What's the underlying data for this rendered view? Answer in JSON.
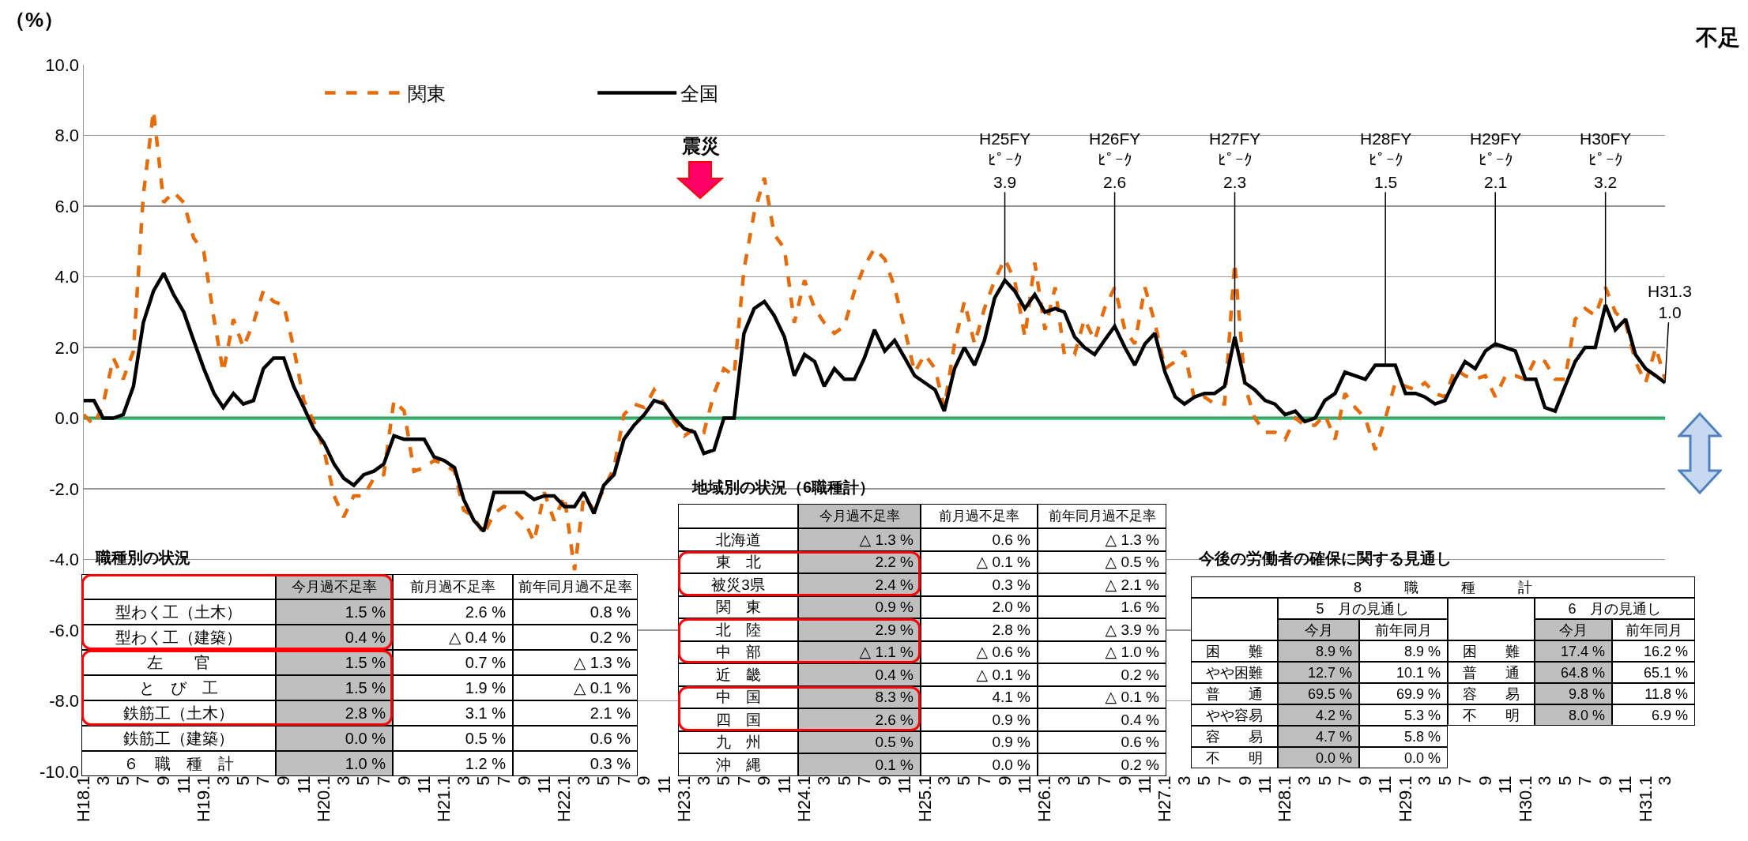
{
  "chart_data": {
    "type": "line",
    "ylabel": "（%）",
    "legend": "top left",
    "grid": "y",
    "x": [
      "2006-01",
      "2006-02",
      "2006-03",
      "2006-04",
      "2006-05",
      "2006-06",
      "2006-07",
      "2006-08",
      "2006-09",
      "2006-10",
      "2006-11",
      "2006-12",
      "2007-01",
      "2007-02",
      "2007-03",
      "2007-04",
      "2007-05",
      "2007-06",
      "2007-07",
      "2007-08",
      "2007-09",
      "2007-10",
      "2007-11",
      "2007-12",
      "2008-01",
      "2008-02",
      "2008-03",
      "2008-04",
      "2008-05",
      "2008-06",
      "2008-07",
      "2008-08",
      "2008-09",
      "2008-10",
      "2008-11",
      "2008-12",
      "2009-01",
      "2009-02",
      "2009-03",
      "2009-04",
      "2009-05",
      "2009-06",
      "2009-07",
      "2009-08",
      "2009-09",
      "2009-10",
      "2009-11",
      "2009-12",
      "2010-01",
      "2010-02",
      "2010-03",
      "2010-04",
      "2010-05",
      "2010-06",
      "2010-07",
      "2010-08",
      "2010-09",
      "2010-10",
      "2010-11",
      "2010-12",
      "2011-01",
      "2011-02",
      "2011-03",
      "2011-04",
      "2011-05",
      "2011-06",
      "2011-07",
      "2011-08",
      "2011-09",
      "2011-10",
      "2011-11",
      "2011-12",
      "2012-01",
      "2012-02",
      "2012-03",
      "2012-04",
      "2012-05",
      "2012-06",
      "2012-07",
      "2012-08",
      "2012-09",
      "2012-10",
      "2012-11",
      "2012-12",
      "2013-01",
      "2013-02",
      "2013-03",
      "2013-04",
      "2013-05",
      "2013-06",
      "2013-07",
      "2013-08",
      "2013-09",
      "2013-10",
      "2013-11",
      "2013-12",
      "2014-01",
      "2014-02",
      "2014-03",
      "2014-04",
      "2014-05",
      "2014-06",
      "2014-07",
      "2014-08",
      "2014-09",
      "2014-10",
      "2014-11",
      "2014-12",
      "2015-01",
      "2015-02",
      "2015-03",
      "2015-04",
      "2015-05",
      "2015-06",
      "2015-07",
      "2015-08",
      "2015-09",
      "2015-10",
      "2015-11",
      "2015-12",
      "2016-01",
      "2016-02",
      "2016-03",
      "2016-04",
      "2016-05",
      "2016-06",
      "2016-07",
      "2016-08",
      "2016-09",
      "2016-10",
      "2016-11",
      "2016-12",
      "2017-01",
      "2017-02",
      "2017-03",
      "2017-04",
      "2017-05",
      "2017-06",
      "2017-07",
      "2017-08",
      "2017-09",
      "2017-10",
      "2017-11",
      "2017-12",
      "2018-01",
      "2018-02",
      "2018-03",
      "2018-04",
      "2018-05",
      "2018-06",
      "2018-07",
      "2018-08",
      "2018-09",
      "2018-10",
      "2018-11",
      "2018-12",
      "2019-01",
      "2019-02",
      "2019-03"
    ],
    "xlim": [
      "2006-01",
      "2019-03"
    ],
    "xticks": [
      {
        "value": "2006-01",
        "label": "H18.1"
      },
      {
        "value": "2006-03",
        "label": "3"
      },
      {
        "value": "2006-05",
        "label": "5"
      },
      {
        "value": "2006-07",
        "label": "7"
      },
      {
        "value": "2006-09",
        "label": "9"
      },
      {
        "value": "2006-11",
        "label": "11"
      },
      {
        "value": "2007-01",
        "label": "H19.1"
      },
      {
        "value": "2007-03",
        "label": "3"
      },
      {
        "value": "2007-05",
        "label": "5"
      },
      {
        "value": "2007-07",
        "label": "7"
      },
      {
        "value": "2007-09",
        "label": "9"
      },
      {
        "value": "2007-11",
        "label": "11"
      },
      {
        "value": "2008-01",
        "label": "H20.1"
      },
      {
        "value": "2008-03",
        "label": "3"
      },
      {
        "value": "2008-05",
        "label": "5"
      },
      {
        "value": "2008-07",
        "label": "7"
      },
      {
        "value": "2008-09",
        "label": "9"
      },
      {
        "value": "2008-11",
        "label": "11"
      },
      {
        "value": "2009-01",
        "label": "H21.1"
      },
      {
        "value": "2009-03",
        "label": "3"
      },
      {
        "value": "2009-05",
        "label": "5"
      },
      {
        "value": "2009-07",
        "label": "7"
      },
      {
        "value": "2009-09",
        "label": "9"
      },
      {
        "value": "2009-11",
        "label": "11"
      },
      {
        "value": "2010-01",
        "label": "H22.1"
      },
      {
        "value": "2010-03",
        "label": "3"
      },
      {
        "value": "2010-05",
        "label": "5"
      },
      {
        "value": "2010-07",
        "label": "7"
      },
      {
        "value": "2010-09",
        "label": "9"
      },
      {
        "value": "2010-11",
        "label": "11"
      },
      {
        "value": "2011-01",
        "label": "H23.1"
      },
      {
        "value": "2011-03",
        "label": "3"
      },
      {
        "value": "2011-05",
        "label": "5"
      },
      {
        "value": "2011-07",
        "label": "7"
      },
      {
        "value": "2011-09",
        "label": "9"
      },
      {
        "value": "2011-11",
        "label": "11"
      },
      {
        "value": "2012-01",
        "label": "H24.1"
      },
      {
        "value": "2012-03",
        "label": "3"
      },
      {
        "value": "2012-05",
        "label": "5"
      },
      {
        "value": "2012-07",
        "label": "7"
      },
      {
        "value": "2012-09",
        "label": "9"
      },
      {
        "value": "2012-11",
        "label": "11"
      },
      {
        "value": "2013-01",
        "label": "H25.1"
      },
      {
        "value": "2013-03",
        "label": "3"
      },
      {
        "value": "2013-05",
        "label": "5"
      },
      {
        "value": "2013-07",
        "label": "7"
      },
      {
        "value": "2013-09",
        "label": "9"
      },
      {
        "value": "2013-11",
        "label": "11"
      },
      {
        "value": "2014-01",
        "label": "H26.1"
      },
      {
        "value": "2014-03",
        "label": "3"
      },
      {
        "value": "2014-05",
        "label": "5"
      },
      {
        "value": "2014-07",
        "label": "7"
      },
      {
        "value": "2014-09",
        "label": "9"
      },
      {
        "value": "2014-11",
        "label": "11"
      },
      {
        "value": "2015-01",
        "label": "H27.1"
      },
      {
        "value": "2015-03",
        "label": "3"
      },
      {
        "value": "2015-05",
        "label": "5"
      },
      {
        "value": "2015-07",
        "label": "7"
      },
      {
        "value": "2015-09",
        "label": "9"
      },
      {
        "value": "2015-11",
        "label": "11"
      },
      {
        "value": "2016-01",
        "label": "H28.1"
      },
      {
        "value": "2016-03",
        "label": "3"
      },
      {
        "value": "2016-05",
        "label": "5"
      },
      {
        "value": "2016-07",
        "label": "7"
      },
      {
        "value": "2016-09",
        "label": "9"
      },
      {
        "value": "2016-11",
        "label": "11"
      },
      {
        "value": "2017-01",
        "label": "H29.1"
      },
      {
        "value": "2017-03",
        "label": "3"
      },
      {
        "value": "2017-05",
        "label": "5"
      },
      {
        "value": "2017-07",
        "label": "7"
      },
      {
        "value": "2017-09",
        "label": "9"
      },
      {
        "value": "2017-11",
        "label": "11"
      },
      {
        "value": "2018-01",
        "label": "H30.1"
      },
      {
        "value": "2018-03",
        "label": "3"
      },
      {
        "value": "2018-05",
        "label": "5"
      },
      {
        "value": "2018-07",
        "label": "7"
      },
      {
        "value": "2018-09",
        "label": "9"
      },
      {
        "value": "2018-11",
        "label": "11"
      },
      {
        "value": "2019-01",
        "label": "H31.1"
      },
      {
        "value": "2019-03",
        "label": "3"
      }
    ],
    "ylim": [
      -10,
      10
    ],
    "yticks": [
      {
        "value": -10,
        "label": "-10.0"
      },
      {
        "value": -8,
        "label": "-8.0"
      },
      {
        "value": -6,
        "label": "-6.0"
      },
      {
        "value": -4,
        "label": "-4.0"
      },
      {
        "value": -2,
        "label": "-2.0"
      },
      {
        "value": 0,
        "label": "0.0"
      },
      {
        "value": 2,
        "label": "2.0"
      },
      {
        "value": 4,
        "label": "4.0"
      },
      {
        "value": 6,
        "label": "6.0"
      },
      {
        "value": 8,
        "label": "8.0"
      },
      {
        "value": 10,
        "label": "10.0"
      }
    ],
    "series": [
      {
        "name": "関東",
        "color": "#e46c0a",
        "line_style": "dashed",
        "values": [
          0.1,
          -0.2,
          0.4,
          1.7,
          1.1,
          1.9,
          6.3,
          8.7,
          6.1,
          6.4,
          6.1,
          5.1,
          4.7,
          2.8,
          1.3,
          2.8,
          2.0,
          2.7,
          3.6,
          3.3,
          3.2,
          2.0,
          0.5,
          -0.1,
          -0.9,
          -2.2,
          -2.8,
          -2.2,
          -2.2,
          -1.7,
          -1.6,
          0.5,
          0.2,
          -1.5,
          -1.4,
          -1.2,
          -1.3,
          -1.5,
          -2.6,
          -2.8,
          -3.3,
          -2.7,
          -2.5,
          -2.6,
          -2.9,
          -3.5,
          -2.1,
          -2.9,
          -2.2,
          -4.3,
          -2.2,
          -2.6,
          -2.0,
          -1.4,
          0.1,
          0.4,
          0.3,
          0.8,
          0.4,
          -0.1,
          -0.5,
          -0.3,
          -0.4,
          0.7,
          1.4,
          1.2,
          4.2,
          5.8,
          6.8,
          5.2,
          4.8,
          2.7,
          3.9,
          3.1,
          2.7,
          2.4,
          2.6,
          3.6,
          4.3,
          4.8,
          4.5,
          3.7,
          2.5,
          1.3,
          1.8,
          1.4,
          0.3,
          2.1,
          3.3,
          2.1,
          3.1,
          3.9,
          4.5,
          3.9,
          2.3,
          4.4,
          2.5,
          3.7,
          1.8,
          1.8,
          2.8,
          2.2,
          3.1,
          3.7,
          2.5,
          2.1,
          3.7,
          2.7,
          1.4,
          1.6,
          1.9,
          0.5,
          0.6,
          0.4,
          0.4,
          4.4,
          0.9,
          0.0,
          -0.4,
          -0.4,
          -0.6,
          0.0,
          -0.2,
          -0.2,
          0.1,
          -0.6,
          0.7,
          0.3,
          0.0,
          -0.9,
          0.0,
          1.0,
          0.9,
          0.8,
          1.0,
          0.7,
          0.6,
          1.4,
          1.2,
          1.1,
          1.2,
          0.6,
          1.2,
          1.2,
          1.1,
          1.7,
          1.6,
          1.1,
          1.1,
          2.8,
          3.1,
          2.9,
          3.7,
          3.0,
          2.7,
          1.6,
          1.0,
          2.0,
          1.1
        ]
      },
      {
        "name": "全国",
        "color": "#000000",
        "line_style": "solid",
        "values": [
          0.5,
          0.5,
          0.0,
          0.0,
          0.1,
          0.9,
          2.7,
          3.6,
          4.1,
          3.5,
          3.0,
          2.2,
          1.4,
          0.7,
          0.3,
          0.7,
          0.4,
          0.5,
          1.4,
          1.7,
          1.7,
          0.9,
          0.3,
          -0.3,
          -0.7,
          -1.3,
          -1.7,
          -1.9,
          -1.6,
          -1.5,
          -1.3,
          -0.5,
          -0.6,
          -0.6,
          -0.6,
          -1.1,
          -1.2,
          -1.4,
          -2.3,
          -2.9,
          -3.2,
          -2.1,
          -2.1,
          -2.1,
          -2.1,
          -2.3,
          -2.2,
          -2.2,
          -2.5,
          -2.5,
          -2.1,
          -2.7,
          -1.9,
          -1.6,
          -0.6,
          -0.2,
          0.1,
          0.5,
          0.4,
          0.0,
          -0.3,
          -0.4,
          -1.0,
          -0.9,
          0.0,
          0.0,
          2.4,
          3.1,
          3.3,
          2.9,
          2.3,
          1.2,
          1.8,
          1.6,
          0.9,
          1.4,
          1.1,
          1.1,
          1.7,
          2.5,
          1.9,
          2.2,
          1.7,
          1.2,
          1.0,
          0.8,
          0.2,
          1.4,
          2.0,
          1.5,
          2.2,
          3.4,
          3.9,
          3.6,
          3.1,
          3.5,
          3.0,
          3.1,
          3.0,
          2.3,
          2.0,
          1.8,
          2.2,
          2.6,
          2.0,
          1.5,
          2.1,
          2.4,
          1.3,
          0.6,
          0.4,
          0.6,
          0.7,
          0.7,
          0.9,
          2.3,
          1.0,
          0.8,
          0.5,
          0.4,
          0.1,
          0.2,
          -0.1,
          0.0,
          0.5,
          0.7,
          1.3,
          1.2,
          1.1,
          1.5,
          1.5,
          1.5,
          0.7,
          0.7,
          0.6,
          0.4,
          0.5,
          1.1,
          1.6,
          1.4,
          1.9,
          2.1,
          2.0,
          1.9,
          1.1,
          1.1,
          0.3,
          0.2,
          0.9,
          1.6,
          2.0,
          2.0,
          3.2,
          2.5,
          2.8,
          1.8,
          1.4,
          1.2,
          1.0
        ]
      }
    ],
    "ref_lines": [
      {
        "axis": "y",
        "value": 0,
        "color": "#00b050"
      }
    ],
    "annotations": [
      "震災",
      {
        "text": "H25FY\nﾋﾟｰｸ\n3.9",
        "x": "2013-09",
        "y": 3.9
      },
      {
        "text": "H26FY\nﾋﾟｰｸ\n2.6",
        "x": "2014-08",
        "y": 2.6
      },
      {
        "text": "H27FY\nﾋﾟｰｸ\n2.3",
        "x": "2015-08",
        "y": 2.3
      },
      {
        "text": "H28FY\nﾋﾟｰｸ\n1.5",
        "x": "2016-11",
        "y": 1.5
      },
      {
        "text": "H29FY\nﾋﾟｰｸ\n2.1",
        "x": "2017-10",
        "y": 2.1
      },
      {
        "text": "H30FY\nﾋﾟｰｸ\n3.2",
        "x": "2018-09",
        "y": 3.2
      },
      {
        "text": "H31.3\n1.0",
        "x": "2019-03",
        "y": 1.0
      },
      "不足",
      "職種別の状況",
      "今月過不足率",
      "前月過不足率",
      "前年同月過不足率",
      "型わく工（土木）",
      "1.5 %",
      "2.6 %",
      "0.8 %",
      "型わく工（建築）",
      "0.4 %",
      "△ 0.4 %",
      "0.2 %",
      "左　　官",
      "1.5 %",
      "0.7 %",
      "△ 1.3 %",
      "と　び　工",
      "1.5 %",
      "1.9 %",
      "△ 0.1 %",
      "鉄筋工（土木）",
      "2.8 %",
      "3.1 %",
      "2.1 %",
      "鉄筋工（建築）",
      "0.0 %",
      "0.5 %",
      "0.6 %",
      "６　職　種　計",
      "1.0 %",
      "1.2 %",
      "0.3 %",
      "地域別の状況（6職種計）",
      "今月過不足率",
      "前月過不足率",
      "前年同月過不足率",
      "北海道",
      "△ 1.3 %",
      "0.6 %",
      "△ 1.3 %",
      "東　北",
      "2.2 %",
      "△ 0.1 %",
      "△ 0.5 %",
      "被災3県",
      "2.4 %",
      "0.3 %",
      "△ 2.1 %",
      "関　東",
      "0.9 %",
      "2.0 %",
      "1.6 %",
      "北　陸",
      "2.9 %",
      "2.8 %",
      "△ 3.9 %",
      "中　部",
      "△ 1.1 %",
      "△ 0.6 %",
      "△ 1.0 %",
      "近　畿",
      "0.4 %",
      "△ 0.1 %",
      "0.2 %",
      "中　国",
      "8.3 %",
      "4.1 %",
      "△ 0.1 %",
      "四　国",
      "2.6 %",
      "0.9 %",
      "0.4 %",
      "九　州",
      "0.5 %",
      "0.9 %",
      "0.6 %",
      "沖　縄",
      "0.1 %",
      "0.0 %",
      "0.2 %",
      "今後の労働者の確保に関する見通し",
      "8　　　職　　　種　　　計",
      "5　月の見通し",
      "6　月の見通し",
      "今月",
      "前年同月",
      "今月",
      "前年同月",
      "困　　難",
      "8.9 %",
      "8.9 %",
      "やや困難",
      "12.7 %",
      "10.1 %",
      "普　　通",
      "69.5 %",
      "69.9 %",
      "やや容易",
      "4.2 %",
      "5.3 %",
      "容　　易",
      "4.7 %",
      "5.8 %",
      "不　　明",
      "0.0 %",
      "0.0 %",
      "困　　難",
      "17.4 %",
      "16.2 %",
      "普　　通",
      "64.8 %",
      "65.1 %",
      "容　　易",
      "9.8 %",
      "11.8 %",
      "不　　明",
      "8.0 %",
      "6.9 %"
    ]
  }
}
